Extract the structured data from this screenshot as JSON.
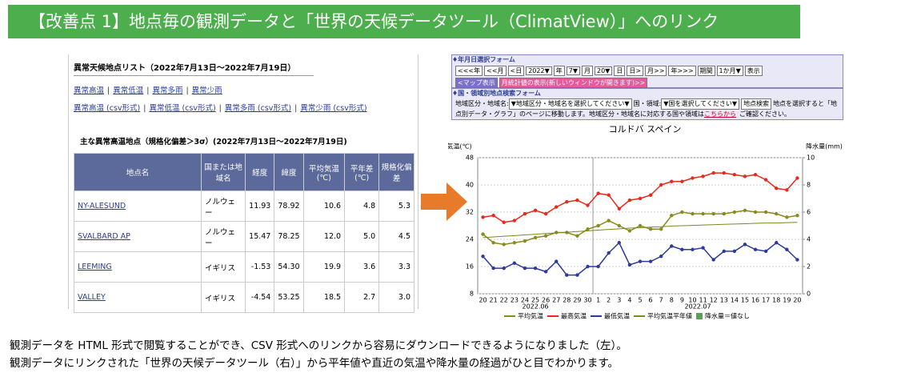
{
  "banner": "【改善点 1】地点毎の観測データと「世界の天候データツール（ClimatView）」へのリンク",
  "left": {
    "title": "異常天候地点リスト（2022年7月13日～2022年7月19日）",
    "links1": [
      "異常高温",
      "異常低温",
      "異常多雨",
      "異常少雨"
    ],
    "links2": [
      "異常高温 (csv形式)",
      "異常低温 (csv形式)",
      "異常多雨 (csv形式)",
      "異常少雨 (csv形式)"
    ],
    "table_title": "主な異常高温地点（規格化偏差＞3σ）(2022年7月13日～2022年7月19日)",
    "table": {
      "header": [
        "地点名",
        "国または地域名",
        "経度",
        "緯度",
        "平均気温(℃)",
        "平年差(℃)",
        "規格化偏差"
      ],
      "rows": [
        [
          "NY-ALESUND",
          "ノルウェー",
          "11.93",
          "78.92",
          "10.6",
          "4.8",
          "5.3"
        ],
        [
          "SVALBARD AP",
          "ノルウェー",
          "15.47",
          "78.25",
          "12.0",
          "5.0",
          "4.5"
        ],
        [
          "LEEMING",
          "イギリス",
          "-1.53",
          "54.30",
          "19.9",
          "3.6",
          "3.3"
        ],
        [
          "VALLEY",
          "イギリス",
          "-4.54",
          "53.25",
          "18.5",
          "2.7",
          "3.0"
        ]
      ]
    }
  },
  "form": {
    "title1": "♦年月日選択フォーム",
    "buttons": [
      "<<<年",
      "<<月",
      "<日",
      "2022▼",
      "年",
      "7▼",
      "月",
      "20▼",
      "日",
      "日>",
      "月>>",
      "年>>>",
      "期間",
      "1か月▼",
      "表示"
    ],
    "map": "<マップ表示",
    "monthly": "月統計値の表示(新しいウィンドウが開きます)>>",
    "title2": "♦国・領域別地点検索フォーム",
    "region_label": "地域区分・地域名:",
    "region_select": "▼地域区分・地域名を選択してください▼",
    "country_label": "国・領域:",
    "country_select": "▼国を選択してください▼",
    "search": "地点検索",
    "note": "地点を選択すると「地点別データ・グラフ」のページに移動します。地域区分・地域名に対応する国や領域は",
    "note_link": "こちらから",
    "note_end": "ご確認ください。"
  },
  "chart_data": {
    "type": "line",
    "title": "コルドバ スペイン",
    "ylabel": "気温(℃)",
    "y2label": "降水量(mm)",
    "categories": [
      "20",
      "21",
      "22",
      "23",
      "24",
      "25",
      "26",
      "27",
      "28",
      "29",
      "30",
      "1",
      "2",
      "3",
      "4",
      "5",
      "6",
      "7",
      "8",
      "9",
      "10",
      "11",
      "12",
      "13",
      "14",
      "15",
      "16",
      "17",
      "18",
      "19",
      "20"
    ],
    "months": [
      "2022.06",
      "2022.07"
    ],
    "ylim": [
      8,
      48
    ],
    "yticks": [
      8,
      16,
      24,
      32,
      40,
      48
    ],
    "y2lim": [
      0,
      10
    ],
    "y2ticks": [
      0,
      2,
      4,
      6,
      8,
      10
    ],
    "grid": true,
    "series": [
      {
        "name": "平均気温",
        "color": "#8a8a1e",
        "values": [
          25.5,
          23,
          22.5,
          23,
          23.5,
          24.5,
          25,
          26,
          26,
          25,
          27,
          28,
          29.5,
          28,
          26.5,
          28,
          27,
          27,
          31,
          32,
          31.5,
          31.5,
          31.5,
          31.5,
          32,
          32.5,
          32,
          32,
          31.5,
          30.5,
          31
        ]
      },
      {
        "name": "最高気温",
        "color": "#e8291c",
        "values": [
          30.5,
          31,
          29,
          29.5,
          31.5,
          32.5,
          31.5,
          33.5,
          35,
          35.5,
          34,
          37.5,
          37,
          33,
          35.5,
          36,
          37,
          40,
          41,
          41,
          42,
          42.5,
          43.5,
          43.5,
          43,
          42.5,
          43,
          41.5,
          39,
          38.5,
          42
        ]
      },
      {
        "name": "最低気温",
        "color": "#2b3a9c",
        "values": [
          19,
          15.5,
          15.5,
          17,
          15.5,
          15.5,
          14.5,
          17.5,
          13.5,
          13.5,
          16,
          16,
          20,
          23,
          16.5,
          17.5,
          17.5,
          19,
          22,
          21,
          21,
          21.5,
          18,
          20.5,
          20.5,
          22.5,
          21,
          20.5,
          23,
          21,
          18
        ]
      },
      {
        "name": "平均気温平年値",
        "color": "#7a8a1e",
        "values": [
          24.5,
          24.7,
          24.9,
          25.1,
          25.3,
          25.5,
          25.7,
          25.9,
          26.1,
          26.3,
          26.5,
          26.7,
          26.9,
          27.1,
          27.3,
          27.4,
          27.6,
          27.7,
          27.9,
          28.0,
          28.1,
          28.2,
          28.3,
          28.4,
          28.5,
          28.6,
          28.7,
          28.8,
          28.8,
          28.9,
          29.0
        ]
      }
    ],
    "precip_legend": "降水量＝値なし",
    "precip_color": "#5aa05a"
  },
  "footer": [
    "観測データを HTML 形式で閲覧することができ、CSV 形式へのリンクから容易にダウンロードできるようになりました（左）。",
    "観測データにリンクされた「世界の天候データツール（右）」から平年値や直近の気温や降水量の経過がひと目でわかります。"
  ]
}
